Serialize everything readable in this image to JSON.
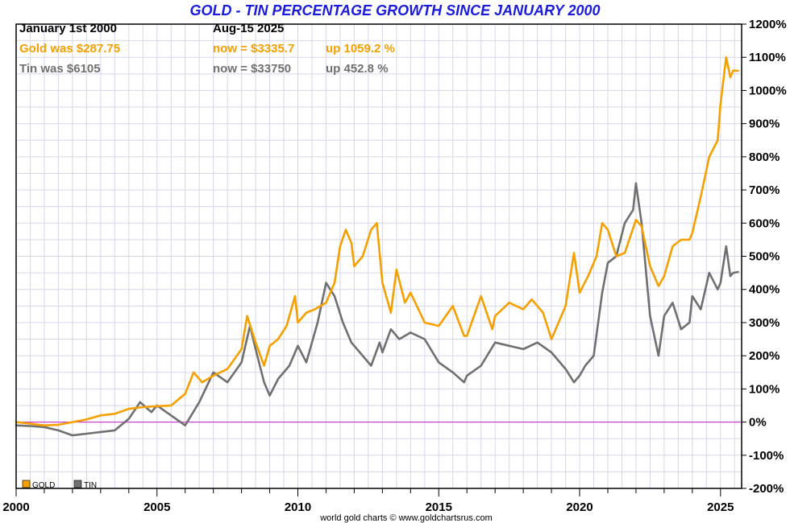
{
  "chart_data": {
    "type": "line",
    "title": "GOLD - TIN PERCENTAGE GROWTH SINCE JANUARY 2000",
    "start_label": "January 1st 2000",
    "end_label": "Aug-15  2025",
    "credit": "world gold charts © www.goldchartsrus.com",
    "xlim": [
      2000,
      2025.75
    ],
    "ylim": [
      -200,
      1200
    ],
    "x_ticks": [
      2000,
      2005,
      2010,
      2015,
      2020,
      2025
    ],
    "x_tick_labels": [
      "2000",
      "2005",
      "2010",
      "2015",
      "2020",
      "2025"
    ],
    "y_ticks": [
      -200,
      -100,
      0,
      100,
      200,
      300,
      400,
      500,
      600,
      700,
      800,
      900,
      1000,
      1100,
      1200
    ],
    "y_tick_labels": [
      "-200%",
      "-100%",
      "0%",
      "100%",
      "200%",
      "300%",
      "400%",
      "500%",
      "600%",
      "700%",
      "800%",
      "900%",
      "1000%",
      "1100%",
      "1200%"
    ],
    "zero_line_color": "#cc33cc",
    "legend": [
      {
        "name": "GOLD",
        "color": "#f5a000"
      },
      {
        "name": "TIN",
        "color": "#707070"
      }
    ],
    "series": [
      {
        "name": "GOLD",
        "color": "#f5a000",
        "was_label": "Gold was $287.75",
        "now_label": "now = $3335.7",
        "up_label": "up 1059.2 %",
        "x": [
          2000,
          2000.5,
          2001,
          2001.5,
          2002,
          2002.5,
          2003,
          2003.5,
          2004,
          2004.5,
          2005,
          2005.5,
          2006,
          2006.3,
          2006.6,
          2007,
          2007.5,
          2008,
          2008.2,
          2008.5,
          2008.8,
          2009,
          2009.3,
          2009.6,
          2009.9,
          2010,
          2010.3,
          2010.6,
          2011,
          2011.3,
          2011.5,
          2011.7,
          2011.9,
          2012,
          2012.3,
          2012.6,
          2012.8,
          2013,
          2013.3,
          2013.5,
          2013.8,
          2014,
          2014.5,
          2015,
          2015.5,
          2015.9,
          2016,
          2016.5,
          2016.9,
          2017,
          2017.5,
          2018,
          2018.3,
          2018.7,
          2019,
          2019.5,
          2019.8,
          2020,
          2020.3,
          2020.6,
          2020.8,
          2021,
          2021.3,
          2021.6,
          2022,
          2022.2,
          2022.5,
          2022.8,
          2023,
          2023.3,
          2023.6,
          2023.9,
          2024,
          2024.3,
          2024.6,
          2024.9,
          2025,
          2025.2,
          2025.35,
          2025.45,
          2025.62
        ],
        "y": [
          0,
          -5,
          -10,
          -8,
          0,
          8,
          20,
          25,
          40,
          45,
          48,
          50,
          85,
          150,
          120,
          140,
          160,
          220,
          320,
          240,
          170,
          230,
          250,
          290,
          380,
          300,
          330,
          340,
          360,
          420,
          530,
          580,
          540,
          470,
          500,
          580,
          600,
          420,
          330,
          460,
          360,
          390,
          300,
          290,
          350,
          260,
          260,
          380,
          280,
          320,
          360,
          340,
          370,
          330,
          250,
          350,
          510,
          390,
          440,
          500,
          600,
          580,
          500,
          510,
          610,
          590,
          470,
          410,
          440,
          530,
          550,
          550,
          570,
          680,
          800,
          850,
          960,
          1100,
          1040,
          1060,
          1059.2
        ]
      },
      {
        "name": "TIN",
        "color": "#707070",
        "was_label": "Tin was $6105",
        "now_label": "now = $33750",
        "up_label": "up 452.8 %",
        "x": [
          2000,
          2000.5,
          2001,
          2001.5,
          2002,
          2002.5,
          2003,
          2003.5,
          2004,
          2004.4,
          2004.8,
          2005,
          2005.5,
          2006,
          2006.5,
          2007,
          2007.5,
          2008,
          2008.3,
          2008.5,
          2008.8,
          2009,
          2009.3,
          2009.7,
          2010,
          2010.3,
          2010.7,
          2011,
          2011.3,
          2011.6,
          2011.9,
          2012,
          2012.3,
          2012.6,
          2012.9,
          2013,
          2013.3,
          2013.6,
          2014,
          2014.5,
          2015,
          2015.5,
          2015.9,
          2016,
          2016.5,
          2017,
          2017.5,
          2018,
          2018.5,
          2019,
          2019.5,
          2019.8,
          2020,
          2020.2,
          2020.5,
          2020.8,
          2021,
          2021.3,
          2021.6,
          2021.9,
          2022,
          2022.2,
          2022.5,
          2022.8,
          2023,
          2023.3,
          2023.6,
          2023.9,
          2024,
          2024.3,
          2024.6,
          2024.9,
          2025,
          2025.2,
          2025.35,
          2025.45,
          2025.62
        ],
        "y": [
          -10,
          -12,
          -15,
          -25,
          -40,
          -35,
          -30,
          -25,
          10,
          60,
          30,
          50,
          20,
          -10,
          60,
          150,
          120,
          180,
          290,
          220,
          120,
          80,
          130,
          170,
          230,
          180,
          300,
          420,
          380,
          300,
          240,
          230,
          200,
          170,
          240,
          210,
          280,
          250,
          270,
          250,
          180,
          150,
          120,
          140,
          170,
          240,
          230,
          220,
          240,
          210,
          160,
          120,
          140,
          170,
          200,
          390,
          480,
          500,
          600,
          640,
          720,
          600,
          320,
          200,
          320,
          360,
          280,
          300,
          380,
          340,
          450,
          400,
          420,
          530,
          440,
          450,
          452.8
        ]
      }
    ]
  }
}
